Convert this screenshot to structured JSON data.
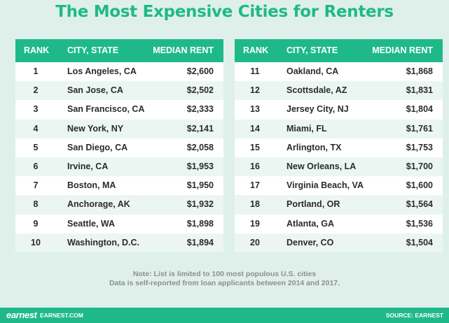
{
  "title": "The Most Expensive Cities for Renters",
  "headers": {
    "rank": "RANK",
    "city": "CITY, STATE",
    "rent": "MEDIAN RENT"
  },
  "left_rows": [
    {
      "rank": "1",
      "city": "Los Angeles, CA",
      "rent": "$2,600"
    },
    {
      "rank": "2",
      "city": "San Jose, CA",
      "rent": "$2,502"
    },
    {
      "rank": "3",
      "city": "San Francisco, CA",
      "rent": "$2,333"
    },
    {
      "rank": "4",
      "city": "New York, NY",
      "rent": "$2,141"
    },
    {
      "rank": "5",
      "city": "San Diego, CA",
      "rent": "$2,058"
    },
    {
      "rank": "6",
      "city": "Irvine, CA",
      "rent": "$1,953"
    },
    {
      "rank": "7",
      "city": "Boston, MA",
      "rent": "$1,950"
    },
    {
      "rank": "8",
      "city": "Anchorage, AK",
      "rent": "$1,932"
    },
    {
      "rank": "9",
      "city": "Seattle, WA",
      "rent": "$1,898"
    },
    {
      "rank": "10",
      "city": "Washington, D.C.",
      "rent": "$1,894"
    }
  ],
  "right_rows": [
    {
      "rank": "11",
      "city": "Oakland, CA",
      "rent": "$1,868"
    },
    {
      "rank": "12",
      "city": "Scottsdale, AZ",
      "rent": "$1,831"
    },
    {
      "rank": "13",
      "city": "Jersey City, NJ",
      "rent": "$1,804"
    },
    {
      "rank": "14",
      "city": "Miami, FL",
      "rent": "$1,761"
    },
    {
      "rank": "15",
      "city": "Arlington, TX",
      "rent": "$1,753"
    },
    {
      "rank": "16",
      "city": "New Orleans, LA",
      "rent": "$1,700"
    },
    {
      "rank": "17",
      "city": "Virginia Beach, VA",
      "rent": "$1,600"
    },
    {
      "rank": "18",
      "city": "Portland, OR",
      "rent": "$1,564"
    },
    {
      "rank": "19",
      "city": "Atlanta, GA",
      "rent": "$1,536"
    },
    {
      "rank": "20",
      "city": "Denver, CO",
      "rent": "$1,504"
    }
  ],
  "note": {
    "line1": "Note: List is limited to 100 most populous U.S. cities",
    "line2": "Data is self-reported from loan applicants between 2014 and 2017."
  },
  "footer": {
    "brand": "earnest",
    "site": "EARNEST.COM",
    "source": "SOURCE: EARNEST"
  },
  "colors": {
    "accent": "#1fb989",
    "background": "#dff0ea",
    "row_alt": "#ebf6f2"
  }
}
